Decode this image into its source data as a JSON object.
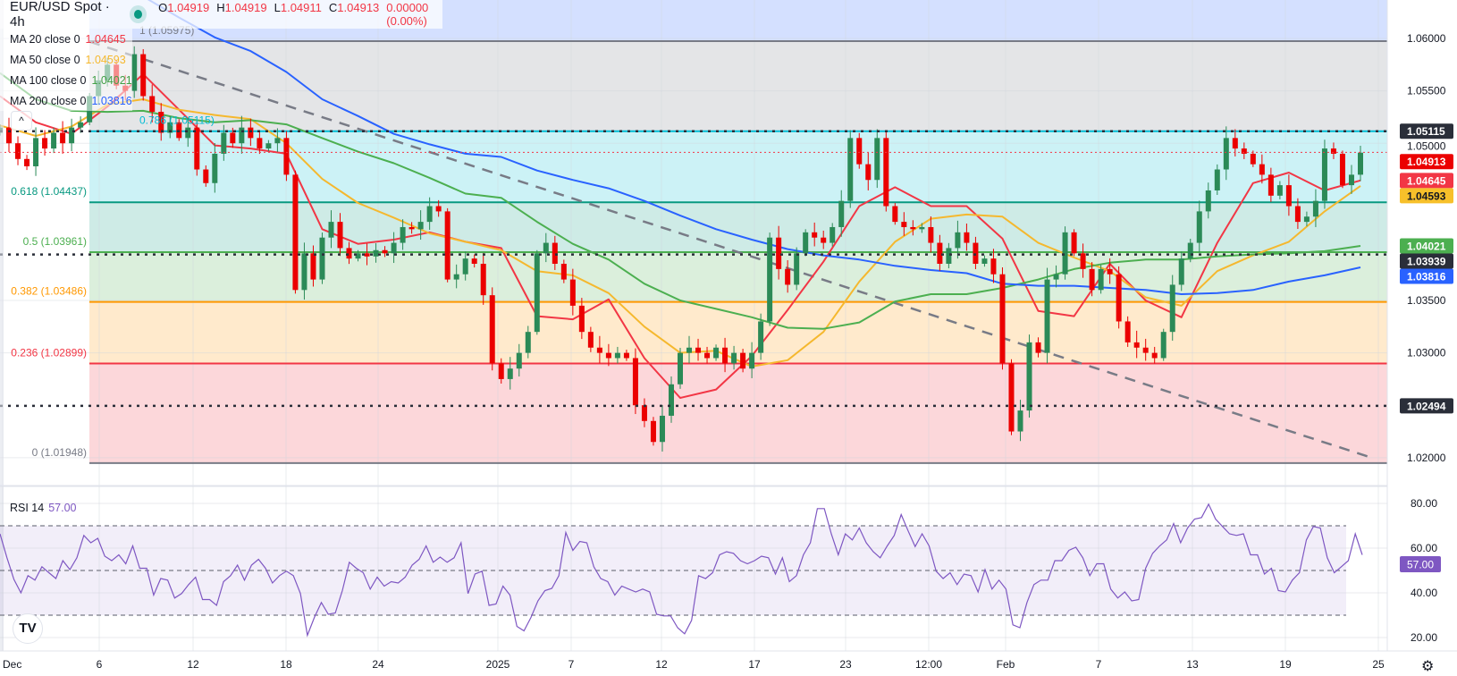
{
  "header": {
    "symbol": "EUR/USD Spot · 4h",
    "market_status_color": "#089981",
    "ohlc": {
      "o_label": "O",
      "o": "1.04919",
      "h_label": "H",
      "h": "1.04919",
      "l_label": "L",
      "l": "1.04911",
      "c_label": "C",
      "c": "1.04913",
      "change": "0.00000 (0.00%)"
    }
  },
  "legend": [
    {
      "label": "MA 20 close 0",
      "value": "1.04645",
      "color": "#f23645"
    },
    {
      "label": "MA 50 close 0",
      "value": "1.04593",
      "color": "#f5b82e"
    },
    {
      "label": "MA 100 close 0",
      "value": "1.04021",
      "color": "#4caf50"
    },
    {
      "label": "MA 200 close 0",
      "value": "1.03816",
      "color": "#2962ff"
    }
  ],
  "collapse_icon": "chevron-up-icon",
  "collapse_glyph": "^",
  "rsi_legend": {
    "label": "RSI 14",
    "value": "57.00"
  },
  "logo_text": "TV",
  "settings_icon": "gear-icon",
  "chart_data": [
    {
      "type": "candlestick",
      "title": "EUR/USD Spot · 4h",
      "ylim": [
        1.01734,
        1.06367
      ],
      "grid": true,
      "colors": {
        "up": "#2b8a57",
        "down": "#eb0000"
      },
      "x_ticks": [
        "Dec",
        "6",
        "12",
        "18",
        "24",
        "2025",
        "7",
        "12",
        "17",
        "23",
        "12:00",
        "Feb",
        "7",
        "13",
        "19",
        "25"
      ],
      "y_ticks": [
        {
          "value": 1.06,
          "label": "1.06000"
        },
        {
          "value": 1.055,
          "label": "1.05500"
        },
        {
          "value": 1.05,
          "label": "1.05000"
        },
        {
          "value": 1.035,
          "label": "1.03500"
        },
        {
          "value": 1.03,
          "label": "1.03000"
        },
        {
          "value": 1.02,
          "label": "1.02000"
        }
      ],
      "first_open": 1.051,
      "close": [
        1.0515,
        1.05,
        1.0485,
        1.0478,
        1.0505,
        1.0495,
        1.051,
        1.05,
        1.0515,
        1.052,
        1.0545,
        1.056,
        1.0575,
        1.0555,
        1.055,
        1.0585,
        1.0545,
        1.053,
        1.051,
        1.052,
        1.0505,
        1.0515,
        1.0475,
        1.0462,
        1.049,
        1.051,
        1.05,
        1.0515,
        1.0505,
        1.0495,
        1.05,
        1.0505,
        1.047,
        1.036,
        1.0395,
        1.037,
        1.041,
        1.0425,
        1.04,
        1.039,
        1.0395,
        1.0392,
        1.0398,
        1.0395,
        1.0405,
        1.042,
        1.0418,
        1.0425,
        1.044,
        1.0435,
        1.037,
        1.0375,
        1.039,
        1.0385,
        1.0355,
        1.029,
        1.0275,
        1.0285,
        1.03,
        1.032,
        1.0395,
        1.0405,
        1.0385,
        1.037,
        1.0345,
        1.032,
        1.0305,
        1.03,
        1.0295,
        1.03,
        1.0295,
        1.025,
        1.0235,
        1.0215,
        1.024,
        1.027,
        1.03,
        1.0305,
        1.03,
        1.0295,
        1.0305,
        1.029,
        1.03,
        1.0285,
        1.03,
        1.033,
        1.041,
        1.038,
        1.0365,
        1.0395,
        1.0415,
        1.041,
        1.0405,
        1.042,
        1.0445,
        1.0505,
        1.048,
        1.0465,
        1.0505,
        1.044,
        1.0425,
        1.042,
        1.0418,
        1.042,
        1.0405,
        1.0385,
        1.04,
        1.0415,
        1.0405,
        1.0385,
        1.039,
        1.0375,
        1.029,
        1.0225,
        1.0245,
        1.031,
        1.03,
        1.037,
        1.0375,
        1.0415,
        1.0395,
        1.038,
        1.036,
        1.038,
        1.0375,
        1.033,
        1.031,
        1.0305,
        1.03,
        1.0295,
        1.032,
        1.0365,
        1.039,
        1.0405,
        1.0435,
        1.0455,
        1.0475,
        1.0505,
        1.0495,
        1.049,
        1.048,
        1.047,
        1.045,
        1.046,
        1.044,
        1.0425,
        1.043,
        1.0445,
        1.0495,
        1.049,
        1.046,
        1.047,
        1.0491
      ],
      "moving_averages": [
        {
          "name": "MA 20 close 0",
          "color": "#f23645",
          "values": [
            1.0545,
            1.052,
            1.0509,
            1.0535,
            1.0566,
            1.0532,
            1.0498,
            1.0495,
            1.049,
            1.0418,
            1.0404,
            1.0408,
            1.0415,
            1.0406,
            1.04,
            1.0335,
            1.0332,
            1.0351,
            1.0295,
            1.0257,
            1.0265,
            1.0297,
            1.0341,
            1.0387,
            1.044,
            1.0458,
            1.044,
            1.044,
            1.0409,
            1.034,
            1.0335,
            1.0385,
            1.035,
            1.0334,
            1.0405,
            1.0462,
            1.0472,
            1.0455,
            1.04645
          ]
        },
        {
          "name": "MA 50 close 0",
          "color": "#f5b82e",
          "values": [
            1.0517,
            1.0507,
            1.0516,
            1.0537,
            1.0542,
            1.0532,
            1.0527,
            1.0523,
            1.05,
            1.0466,
            1.0443,
            1.0429,
            1.0414,
            1.0406,
            1.0398,
            1.0378,
            1.0374,
            1.0357,
            1.0325,
            1.03,
            1.0302,
            1.0287,
            1.0293,
            1.032,
            1.0368,
            1.0406,
            1.0428,
            1.0432,
            1.043,
            1.0405,
            1.0391,
            1.0378,
            1.0353,
            1.0345,
            1.0378,
            1.0393,
            1.0406,
            1.0435,
            1.04593
          ]
        },
        {
          "name": "MA 100 close 0",
          "color": "#4caf50",
          "values": [
            1.0567,
            1.0542,
            1.0531,
            1.053,
            1.0531,
            1.0524,
            1.052,
            1.0522,
            1.0518,
            1.0505,
            1.0492,
            1.0481,
            1.0467,
            1.0452,
            1.0448,
            1.0425,
            1.0404,
            1.0389,
            1.0366,
            1.035,
            1.0342,
            1.0334,
            1.0324,
            1.0323,
            1.0329,
            1.0349,
            1.0356,
            1.0356,
            1.0362,
            1.037,
            1.038,
            1.0386,
            1.0389,
            1.0389,
            1.0392,
            1.0394,
            1.0395,
            1.0397,
            1.04021
          ]
        },
        {
          "name": "MA 200 close 0",
          "color": "#2962ff",
          "values": [
            1.072,
            1.07,
            1.0682,
            1.0663,
            1.064,
            1.062,
            1.0601,
            1.0588,
            1.0568,
            1.0542,
            1.0526,
            1.0509,
            1.0499,
            1.049,
            1.0487,
            1.0474,
            1.0465,
            1.0457,
            1.0445,
            1.0431,
            1.0418,
            1.0408,
            1.0399,
            1.0393,
            1.0389,
            1.0383,
            1.0379,
            1.0376,
            1.0366,
            1.0364,
            1.0364,
            1.0362,
            1.036,
            1.0356,
            1.0357,
            1.036,
            1.0368,
            1.0374,
            1.03816
          ]
        }
      ],
      "fibonacci": {
        "zone_above_color": "#2962ff",
        "levels": [
          {
            "ratio": 1,
            "price": 1.05975,
            "label": "1 (1.05975)",
            "color": "#787b86"
          },
          {
            "ratio": 0.786,
            "price": 1.05115,
            "label": "0.786 (1.05115)",
            "color": "#00bcd4"
          },
          {
            "ratio": 0.618,
            "price": 1.04437,
            "label": "0.618 (1.04437)",
            "color": "#089981"
          },
          {
            "ratio": 0.5,
            "price": 1.03961,
            "label": "0.5 (1.03961)",
            "color": "#4caf50"
          },
          {
            "ratio": 0.382,
            "price": 1.03486,
            "label": "0.382 (1.03486)",
            "color": "#ff9800"
          },
          {
            "ratio": 0.236,
            "price": 1.02899,
            "label": "0.236 (1.02899)",
            "color": "#f23645"
          },
          {
            "ratio": 0,
            "price": 1.01948,
            "label": "0 (1.01948)",
            "color": "#787b86"
          }
        ]
      },
      "horizontal_lines": [
        1.05115,
        1.03939,
        1.02494
      ],
      "last_price": 1.04913,
      "trendline": {
        "start_price": 1.0597,
        "end_price": 1.0199,
        "color": "#787b86",
        "style": "dashed"
      },
      "price_tags": [
        {
          "price": 1.05115,
          "text": "1.05115",
          "bg": "#2a2e39",
          "fg": "#ffffff"
        },
        {
          "price": 1.04913,
          "text": "1.04913",
          "bg": "#eb0000",
          "fg": "#ffffff"
        },
        {
          "price": 1.04645,
          "text": "1.04645",
          "bg": "#f23645",
          "fg": "#ffffff"
        },
        {
          "price": 1.04593,
          "text": "1.04593",
          "bg": "#f7c02a",
          "fg": "#131722"
        },
        {
          "price": 1.04021,
          "text": "1.04021",
          "bg": "#4caf50",
          "fg": "#ffffff"
        },
        {
          "price": 1.03939,
          "text": "1.03939",
          "bg": "#2a2e39",
          "fg": "#ffffff"
        },
        {
          "price": 1.03816,
          "text": "1.03816",
          "bg": "#2962ff",
          "fg": "#ffffff"
        },
        {
          "price": 1.02494,
          "text": "1.02494",
          "bg": "#2a2e39",
          "fg": "#ffffff"
        }
      ]
    },
    {
      "type": "line",
      "name": "RSI 14",
      "color": "#7e57c2",
      "ylim": [
        14,
        87.6
      ],
      "band": {
        "upper": 70,
        "middle": 50,
        "lower": 30
      },
      "y_ticks": [
        {
          "value": 80,
          "label": "80.00"
        },
        {
          "value": 60,
          "label": "60.00"
        },
        {
          "value": 40,
          "label": "40.00"
        },
        {
          "value": 20,
          "label": "20.00"
        }
      ],
      "last_value_tag": {
        "value": 57,
        "text": "57.00",
        "bg": "#7e57c2"
      },
      "values": [
        66.4,
        55.7,
        46,
        40,
        47.7,
        45.7,
        51.7,
        49,
        46.4,
        54.4,
        50.4,
        55.7,
        65.7,
        62.4,
        64.4,
        56.4,
        54.4,
        57,
        53,
        61,
        51,
        51,
        39,
        46.4,
        45.7,
        37.7,
        39.7,
        43.7,
        47,
        37,
        37,
        34.4,
        45,
        47.7,
        52.4,
        45.7,
        52.4,
        55,
        51,
        44.4,
        47.7,
        49.7,
        47.7,
        39.7,
        21,
        29,
        35.7,
        30.4,
        31,
        41,
        53.7,
        51,
        49,
        41.7,
        47,
        43,
        45,
        44.4,
        47,
        52.4,
        55,
        61,
        53.7,
        56,
        53.7,
        55.7,
        62.4,
        39.7,
        48.4,
        49.7,
        34.4,
        35,
        43,
        39,
        25,
        23,
        29,
        36.4,
        41,
        42,
        47.7,
        67,
        59,
        63,
        62.4,
        51.7,
        46.4,
        45,
        39,
        43,
        41.7,
        40.4,
        41.7,
        40.4,
        30.4,
        29.7,
        29.7,
        24.4,
        21.7,
        27.7,
        47.7,
        46.4,
        49,
        57,
        58.4,
        57.7,
        54.4,
        53,
        54.4,
        56.4,
        55.7,
        48.4,
        55.7,
        45,
        47.7,
        57,
        62.4,
        77.7,
        77.7,
        66.4,
        57,
        66.4,
        63.7,
        69,
        62.4,
        58.4,
        55.7,
        61,
        65.7,
        75,
        67.7,
        60.7,
        66.4,
        61,
        49.7,
        46.4,
        49,
        43.7,
        48.4,
        47.7,
        40.4,
        50.4,
        41.7,
        45.7,
        41.7,
        25.7,
        24.4,
        35.7,
        43.7,
        45.7,
        45.7,
        54.4,
        54.4,
        59,
        60.4,
        55.7,
        47.7,
        53,
        53,
        41.7,
        37.7,
        40.4,
        36.4,
        37,
        51,
        57.7,
        61,
        63.7,
        71,
        62.4,
        69,
        73,
        73.7,
        79.7,
        73,
        69.7,
        66.4,
        65.7,
        66.4,
        57,
        57,
        48.4,
        51,
        41,
        40.4,
        45.7,
        49,
        63.7,
        69.7,
        69,
        55.7,
        49,
        51.7,
        54.4,
        66.4,
        57
      ]
    }
  ]
}
